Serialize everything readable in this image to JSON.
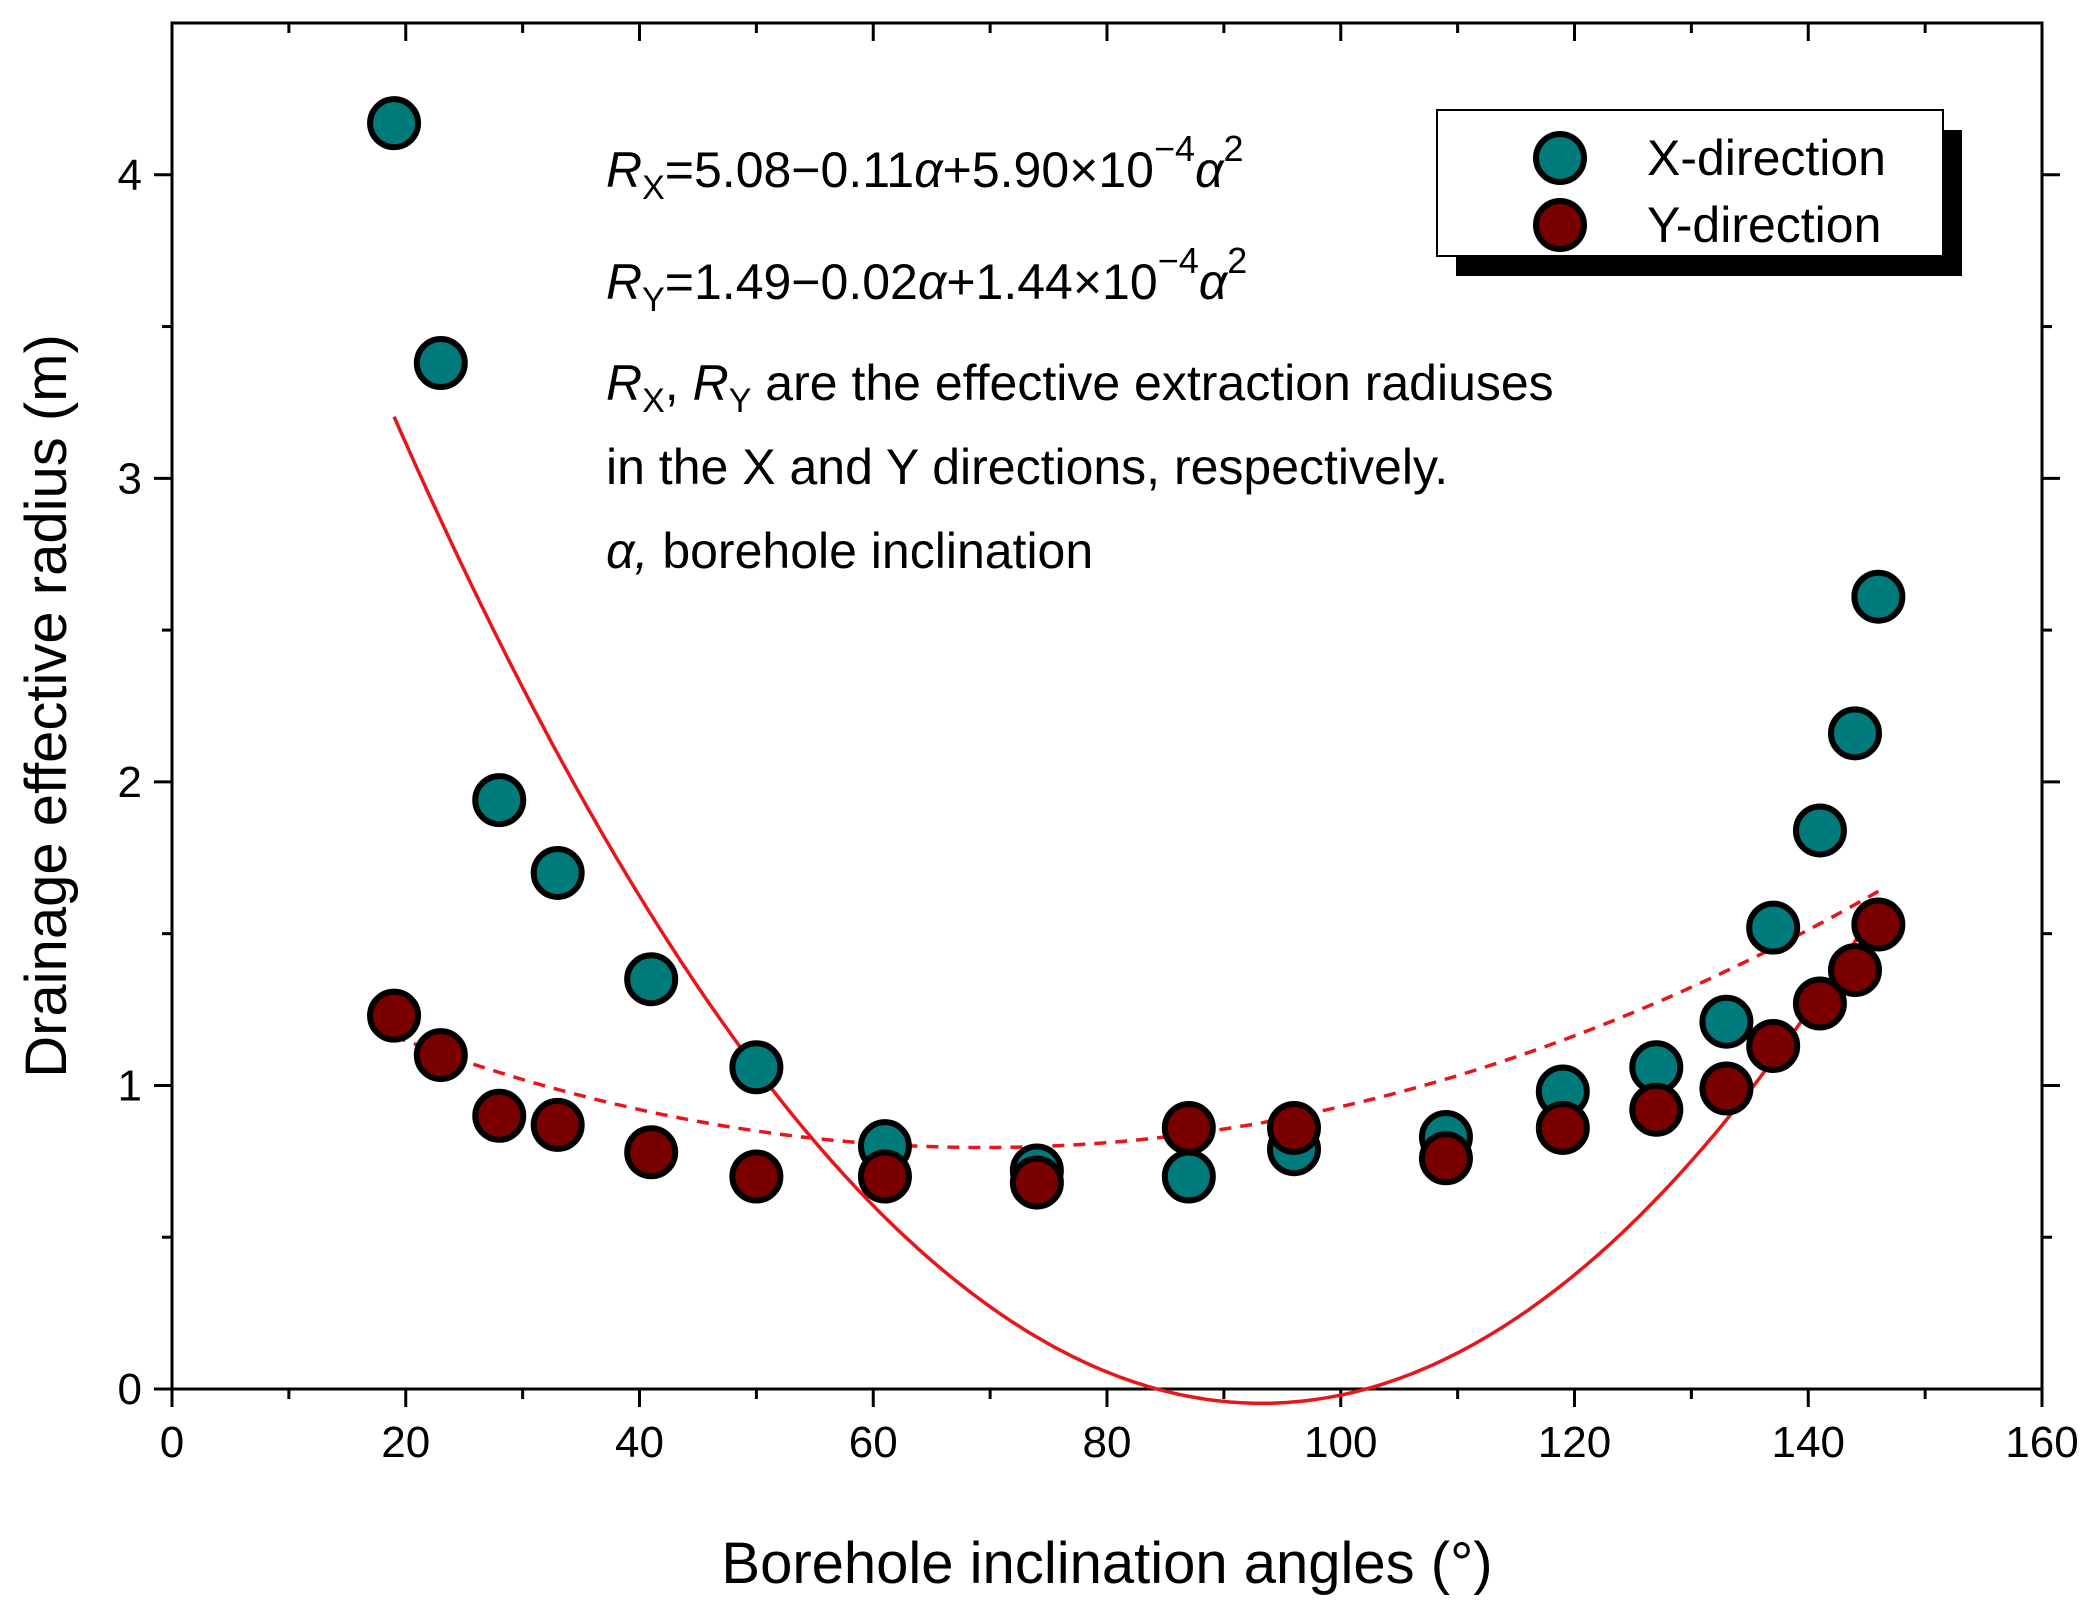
{
  "chart_data": {
    "type": "scatter",
    "title": "",
    "xlabel": "Borehole inclination angles (°)",
    "ylabel": "Drainage effective radius (m)",
    "xlim": [
      0,
      160
    ],
    "ylim": [
      0,
      4.5
    ],
    "xticks": [
      0,
      20,
      40,
      60,
      80,
      100,
      120,
      140,
      160
    ],
    "xtick_labels": [
      "0",
      "20",
      "40",
      "60",
      "80",
      "100",
      "120",
      "140",
      "160"
    ],
    "yticks": [
      0,
      1,
      2,
      3,
      4
    ],
    "ytick_labels": [
      "0",
      "1",
      "2",
      "3",
      "4"
    ],
    "legend_position": "top-right",
    "grid": false,
    "series": [
      {
        "name": "X-direction",
        "color": "#007b7b",
        "x": [
          19,
          23,
          28,
          33,
          41,
          50,
          61,
          74,
          87,
          96,
          109,
          119,
          127,
          133,
          137,
          141,
          144,
          146
        ],
        "y": [
          4.17,
          3.38,
          1.94,
          1.7,
          1.35,
          1.06,
          0.8,
          0.72,
          0.7,
          0.79,
          0.83,
          0.98,
          1.06,
          1.21,
          1.52,
          1.84,
          2.16,
          2.61
        ]
      },
      {
        "name": "Y-direction",
        "color": "#7a0000",
        "x": [
          19,
          23,
          28,
          33,
          41,
          50,
          61,
          74,
          87,
          96,
          109,
          119,
          127,
          133,
          137,
          141,
          144,
          146
        ],
        "y": [
          1.23,
          1.1,
          0.9,
          0.87,
          0.78,
          0.7,
          0.7,
          0.68,
          0.86,
          0.86,
          0.76,
          0.86,
          0.92,
          0.99,
          1.13,
          1.27,
          1.38,
          1.53
        ]
      }
    ],
    "fits": [
      {
        "name": "X-direction fit",
        "color": "#e8161b",
        "style": "solid",
        "coefficients": [
          5.08,
          -0.11,
          0.00059
        ],
        "x_range": [
          19,
          146
        ]
      },
      {
        "name": "Y-direction fit",
        "color": "#e8161b",
        "style": "dashed",
        "coefficients": [
          1.49,
          -0.02,
          0.000144
        ],
        "x_range": [
          19,
          146
        ]
      }
    ],
    "annotations": {
      "rx_sym": "R",
      "rx_sub": "X",
      "rx_body": "=5.08−0.11",
      "alpha": "α",
      "rx_mid": "+5.90×10",
      "exp": "−4",
      "sq": "2",
      "ry_sym": "R",
      "ry_sub": "Y",
      "ry_body": "=1.49−0.02",
      "ry_mid": "+1.44×10",
      "line3_sep": ", ",
      "line3_rest": " are the effective extraction radiuses",
      "line4": "in the X and Y directions, respectively.",
      "line5_alpha": "α,",
      "line5_rest": " borehole inclination"
    }
  }
}
